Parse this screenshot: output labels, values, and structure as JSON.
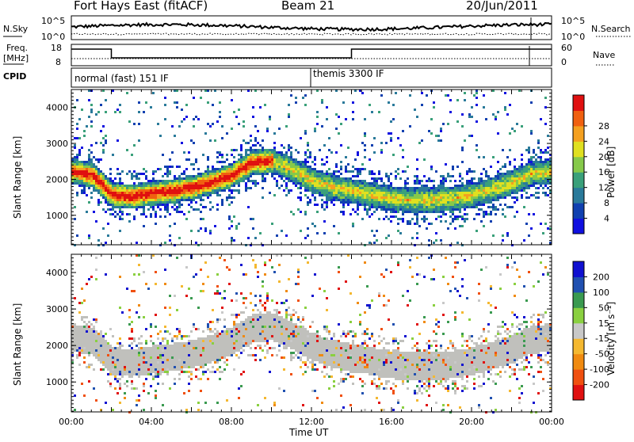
{
  "header": {
    "station": "Fort Hays East (fitACF)",
    "beam": "Beam 21",
    "date": "20/Jun/2011"
  },
  "strip_nsky": {
    "left_label": "N.Sky",
    "right_label": "N.Search",
    "ticks": [
      "10^5",
      "10^0"
    ],
    "scale": "log"
  },
  "strip_freq": {
    "left_label_1": "Freq.",
    "left_label_2": "[MHz]",
    "left_ticks": [
      "18",
      "8"
    ],
    "right_label": "Nave",
    "right_ticks": [
      "60",
      "0"
    ],
    "freq_segments": [
      {
        "start_hour": 0,
        "end_hour": 2,
        "level": "high"
      },
      {
        "start_hour": 2,
        "end_hour": 14,
        "level": "low"
      },
      {
        "start_hour": 14,
        "end_hour": 24,
        "level": "high"
      }
    ]
  },
  "cpid": {
    "label": "CPID",
    "modes": [
      {
        "text": "normal (fast) 151 IF",
        "start_hour": 0
      },
      {
        "text": "themis 3300 IF",
        "start_hour": 12
      }
    ]
  },
  "chart_data": [
    {
      "type": "heatmap",
      "quantity": "Power",
      "ylabel": "Slant Range [km]",
      "xlabel": "Time UT",
      "yticks": [
        1000,
        2000,
        3000,
        4000
      ],
      "ylim": [
        180,
        4500
      ],
      "xlim_hours": [
        0,
        24
      ],
      "colorbar_label": "Power [dB]",
      "colorbar_ticks": [
        "4",
        "8",
        "12",
        "16",
        "20",
        "24",
        "28"
      ],
      "colorbar_colors": [
        "#1010e0",
        "#1040b0",
        "#2a7a9a",
        "#3aa07a",
        "#86c94a",
        "#e0e020",
        "#f4a020",
        "#f06010",
        "#e01010"
      ],
      "main_echo_band_center_km": [
        [
          0.0,
          2250
        ],
        [
          1.0,
          2150
        ],
        [
          2.0,
          1600
        ],
        [
          3.0,
          1550
        ],
        [
          4.0,
          1650
        ],
        [
          5.0,
          1700
        ],
        [
          6.0,
          1800
        ],
        [
          7.0,
          1950
        ],
        [
          8.0,
          2150
        ],
        [
          9.0,
          2500
        ],
        [
          10.0,
          2550
        ],
        [
          11.0,
          2300
        ],
        [
          12.0,
          2000
        ],
        [
          13.0,
          1800
        ],
        [
          14.0,
          1700
        ],
        [
          15.0,
          1600
        ],
        [
          16.0,
          1500
        ],
        [
          17.0,
          1450
        ],
        [
          18.0,
          1450
        ],
        [
          19.0,
          1500
        ],
        [
          20.0,
          1600
        ],
        [
          21.0,
          1750
        ],
        [
          22.0,
          1950
        ],
        [
          23.0,
          2200
        ],
        [
          24.0,
          2250
        ]
      ]
    },
    {
      "type": "heatmap",
      "quantity": "Velocity",
      "ylabel": "Slant Range [km]",
      "xlabel": "Time UT",
      "yticks": [
        1000,
        2000,
        3000,
        4000
      ],
      "ylim": [
        180,
        4500
      ],
      "xlim_hours": [
        0,
        24
      ],
      "colorbar_label": "Velocity [m s⁻¹]",
      "colorbar_ticks": [
        "-200",
        "-100",
        "-50",
        "-15",
        "15",
        "50",
        "100",
        "200"
      ],
      "colorbar_colors": [
        "#e01010",
        "#f05010",
        "#f08a10",
        "#f4b830",
        "#c8c8c8",
        "#8ad040",
        "#3a9a50",
        "#2050b0",
        "#1010d0"
      ]
    }
  ],
  "x_axis": {
    "ticks": [
      "00:00",
      "04:00",
      "08:00",
      "12:00",
      "16:00",
      "20:00",
      "00:00"
    ],
    "label": "Time UT"
  },
  "colors": {
    "ground_scatter": "#c0c0bc",
    "axis": "#000000"
  }
}
